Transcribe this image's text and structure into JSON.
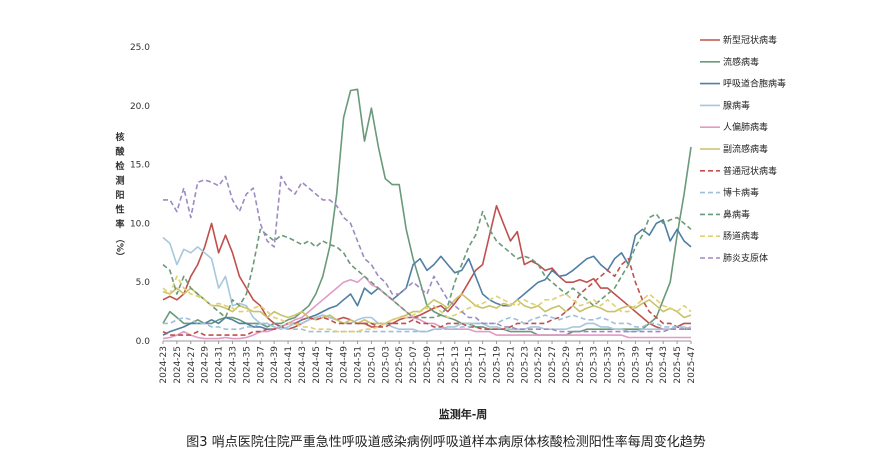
{
  "chart_data": {
    "type": "line",
    "title": "",
    "caption": "图3   哨点医院住院严重急性呼吸道感染病例呼吸道样本病原体核酸检测阳性率每周变化趋势",
    "xlabel": "监测年-周",
    "ylabel_chars": [
      "核",
      "酸",
      "检",
      "测",
      "阳",
      "性",
      "率",
      "（%）"
    ],
    "ylim": [
      0,
      25
    ],
    "yticks": [
      "0.0",
      "5.0",
      "10.0",
      "15.0",
      "20.0",
      "25.0"
    ],
    "ytick_values": [
      0,
      5,
      10,
      15,
      20,
      25
    ],
    "grid": false,
    "legend_position": "right",
    "x_tick_labels": [
      "2024-23",
      "2024-25",
      "2024-27",
      "2024-29",
      "2024-31",
      "2024-33",
      "2024-35",
      "2024-37",
      "2024-39",
      "2024-41",
      "2024-43",
      "2024-45",
      "2024-47",
      "2024-49",
      "2024-51",
      "2025-01",
      "2025-03",
      "2025-05",
      "2025-07",
      "2025-09",
      "2025-11",
      "2025-13",
      "2025-15",
      "2025-17",
      "2025-19",
      "2025-21",
      "2025-23",
      "2025-25",
      "2025-27",
      "2025-29",
      "2025-31",
      "2025-33",
      "2025-35",
      "2025-37",
      "2025-39",
      "2025-41",
      "2025-43",
      "2025-45",
      "2025-47"
    ],
    "n_points": 77,
    "series": [
      {
        "name": "新型冠状病毒",
        "color": "#c0504d",
        "dash": "solid",
        "values": [
          3.5,
          3.8,
          3.5,
          4.0,
          5.5,
          6.5,
          8.0,
          10.0,
          7.5,
          9.0,
          7.5,
          5.5,
          4.5,
          3.5,
          3.0,
          2.0,
          1.5,
          1.2,
          1.0,
          1.2,
          1.5,
          1.8,
          2.0,
          2.2,
          2.0,
          1.8,
          2.0,
          1.8,
          1.5,
          1.5,
          1.2,
          1.2,
          1.5,
          1.5,
          1.8,
          2.0,
          2.0,
          2.2,
          2.5,
          2.8,
          3.0,
          2.5,
          3.2,
          4.0,
          5.0,
          6.0,
          6.5,
          9.0,
          11.5,
          10.0,
          8.5,
          9.3,
          6.5,
          6.8,
          6.5,
          6.0,
          6.2,
          5.5,
          5.0,
          5.0,
          5.2,
          5.0,
          5.3,
          4.5,
          4.5,
          4.0,
          3.5,
          3.0,
          2.5,
          2.0,
          1.5,
          1.2,
          1.0,
          1.0,
          1.2,
          1.5,
          1.5
        ]
      },
      {
        "name": "流感病毒",
        "color": "#6a9a78",
        "dash": "solid",
        "values": [
          1.5,
          2.5,
          2.0,
          1.5,
          1.5,
          1.8,
          1.5,
          1.5,
          1.8,
          2.0,
          2.0,
          1.8,
          1.5,
          1.5,
          1.5,
          1.2,
          1.5,
          1.5,
          1.8,
          2.0,
          2.5,
          3.0,
          4.0,
          5.5,
          8.0,
          12.5,
          19.0,
          21.3,
          21.4,
          17.0,
          19.8,
          16.5,
          13.8,
          13.3,
          13.3,
          9.5,
          7.0,
          5.0,
          3.0,
          2.5,
          2.2,
          2.0,
          1.8,
          1.5,
          1.5,
          1.2,
          1.2,
          1.0,
          1.0,
          1.0,
          0.8,
          0.8,
          0.8,
          0.8,
          0.5,
          0.5,
          0.5,
          0.5,
          0.5,
          0.8,
          0.8,
          1.0,
          1.0,
          1.0,
          1.0,
          1.0,
          1.0,
          1.0,
          1.0,
          1.0,
          1.5,
          2.0,
          3.5,
          5.0,
          9.0,
          12.5,
          16.5
        ]
      },
      {
        "name": "呼吸道合胞病毒",
        "color": "#4f7fa3",
        "dash": "solid",
        "values": [
          0.5,
          0.8,
          1.0,
          1.2,
          1.5,
          1.5,
          1.5,
          1.8,
          1.5,
          2.0,
          1.8,
          1.5,
          1.5,
          1.2,
          1.2,
          1.0,
          1.0,
          1.2,
          1.5,
          1.5,
          1.8,
          2.0,
          2.2,
          2.5,
          2.8,
          3.0,
          3.5,
          4.0,
          3.0,
          4.5,
          4.0,
          4.5,
          4.0,
          3.5,
          4.0,
          4.5,
          6.5,
          7.0,
          6.0,
          6.5,
          7.2,
          6.5,
          5.8,
          6.0,
          7.0,
          5.5,
          4.0,
          3.5,
          3.2,
          3.0,
          3.0,
          3.5,
          4.0,
          4.5,
          5.0,
          5.2,
          6.0,
          5.5,
          5.6,
          6.0,
          6.5,
          7.0,
          7.2,
          6.5,
          6.0,
          7.0,
          7.5,
          6.5,
          9.0,
          9.5,
          9.0,
          10.0,
          10.3,
          8.5,
          9.5,
          8.5,
          8.0
        ]
      },
      {
        "name": "腺病毒",
        "color": "#a6c8de",
        "dash": "solid",
        "values": [
          8.8,
          8.3,
          6.5,
          7.8,
          7.5,
          8.0,
          7.5,
          7.0,
          4.5,
          5.5,
          3.0,
          3.2,
          3.0,
          2.0,
          1.5,
          1.5,
          1.2,
          1.0,
          1.2,
          1.5,
          1.5,
          1.8,
          2.0,
          2.2,
          2.0,
          1.8,
          1.5,
          1.5,
          1.8,
          2.0,
          2.0,
          1.5,
          1.5,
          1.2,
          1.0,
          1.0,
          1.0,
          0.8,
          0.8,
          1.0,
          1.0,
          1.2,
          1.2,
          1.5,
          1.5,
          1.5,
          1.5,
          1.2,
          1.2,
          1.0,
          1.0,
          1.0,
          1.0,
          1.2,
          1.2,
          1.0,
          1.0,
          1.0,
          1.0,
          1.2,
          1.2,
          1.5,
          1.5,
          1.2,
          1.2,
          1.0,
          1.0,
          0.8,
          0.8,
          1.0,
          1.0,
          1.0,
          1.0,
          1.0,
          1.2,
          1.2,
          1.0
        ]
      },
      {
        "name": "人偏肺病毒",
        "color": "#e39ac5",
        "dash": "solid",
        "values": [
          0.2,
          0.3,
          0.5,
          0.8,
          0.5,
          0.3,
          0.2,
          0.2,
          0.2,
          0.3,
          0.2,
          0.2,
          0.3,
          0.5,
          0.8,
          0.8,
          1.0,
          1.2,
          1.5,
          1.8,
          2.0,
          2.5,
          3.0,
          3.5,
          4.0,
          4.5,
          5.0,
          5.2,
          5.0,
          5.5,
          4.8,
          4.5,
          4.0,
          3.5,
          3.0,
          2.5,
          2.0,
          1.8,
          1.5,
          1.5,
          1.2,
          1.0,
          1.0,
          1.0,
          1.0,
          0.8,
          0.8,
          0.8,
          0.5,
          0.5,
          0.5,
          0.5,
          0.5,
          0.5,
          0.5,
          0.5,
          0.5,
          0.5,
          0.5,
          0.5,
          0.5,
          0.5,
          0.5,
          0.5,
          0.5,
          0.5,
          0.5,
          0.3,
          0.3,
          0.3,
          0.3,
          0.3,
          0.3,
          0.3,
          0.3,
          0.3,
          0.3
        ]
      },
      {
        "name": "副流感病毒",
        "color": "#c9c26a",
        "dash": "solid",
        "values": [
          4.2,
          4.0,
          4.5,
          4.0,
          4.5,
          4.0,
          3.5,
          3.0,
          3.0,
          2.8,
          2.5,
          3.0,
          2.8,
          2.5,
          2.5,
          2.0,
          2.5,
          2.2,
          2.0,
          2.2,
          2.5,
          2.0,
          1.8,
          2.0,
          2.2,
          1.8,
          1.5,
          1.8,
          1.5,
          1.8,
          1.5,
          1.5,
          1.5,
          1.8,
          2.0,
          2.2,
          2.5,
          2.5,
          3.0,
          3.5,
          3.2,
          2.8,
          3.5,
          4.0,
          3.5,
          3.0,
          2.8,
          3.0,
          2.8,
          3.2,
          3.0,
          3.5,
          3.0,
          2.8,
          3.0,
          2.5,
          2.8,
          3.0,
          2.5,
          3.0,
          2.5,
          2.8,
          3.0,
          2.8,
          2.5,
          2.5,
          2.8,
          3.0,
          2.8,
          3.2,
          3.5,
          3.0,
          2.5,
          2.8,
          2.5,
          2.0,
          2.2
        ]
      },
      {
        "name": "普通冠状病毒",
        "color": "#c0504d",
        "dash": "dashed",
        "values": [
          0.8,
          0.5,
          0.5,
          0.5,
          0.5,
          0.8,
          0.5,
          0.5,
          0.5,
          0.5,
          0.5,
          0.5,
          0.5,
          0.8,
          0.8,
          1.0,
          1.0,
          1.2,
          1.5,
          1.5,
          1.8,
          2.0,
          1.8,
          2.0,
          1.8,
          1.5,
          1.5,
          1.5,
          1.5,
          1.5,
          1.5,
          1.2,
          1.2,
          1.5,
          1.5,
          1.5,
          1.8,
          1.5,
          1.5,
          1.2,
          1.2,
          1.5,
          1.5,
          1.5,
          1.2,
          1.2,
          1.0,
          1.0,
          1.0,
          1.0,
          1.2,
          1.5,
          1.5,
          1.5,
          1.5,
          1.5,
          1.8,
          2.0,
          2.5,
          3.0,
          4.0,
          4.5,
          5.0,
          5.5,
          6.0,
          5.5,
          6.5,
          7.0,
          5.0,
          3.5,
          2.5,
          2.0,
          1.5,
          1.5,
          1.2,
          1.0,
          1.0
        ]
      },
      {
        "name": "博卡病毒",
        "color": "#9ec0dc",
        "dash": "dashed",
        "values": [
          1.5,
          1.5,
          1.8,
          2.0,
          1.8,
          1.5,
          1.5,
          1.2,
          1.2,
          1.0,
          1.0,
          1.0,
          1.2,
          1.2,
          1.5,
          1.5,
          1.2,
          1.2,
          1.0,
          1.0,
          1.0,
          0.8,
          0.8,
          0.8,
          0.8,
          0.8,
          0.8,
          0.8,
          0.8,
          0.8,
          0.8,
          0.8,
          0.8,
          0.8,
          0.8,
          0.8,
          0.8,
          0.8,
          0.8,
          1.0,
          1.0,
          1.0,
          1.0,
          1.2,
          1.2,
          1.5,
          1.5,
          1.5,
          1.5,
          1.8,
          2.0,
          1.8,
          1.5,
          1.8,
          2.0,
          2.2,
          2.0,
          1.8,
          2.0,
          2.2,
          2.0,
          1.8,
          1.8,
          2.0,
          1.8,
          1.5,
          1.5,
          1.5,
          1.2,
          1.2,
          1.5,
          1.5,
          1.2,
          1.2,
          1.2,
          1.0,
          1.2
        ]
      },
      {
        "name": "鼻病毒",
        "color": "#6a9a78",
        "dash": "dashed",
        "values": [
          6.5,
          6.0,
          4.0,
          5.5,
          4.5,
          4.0,
          3.5,
          3.0,
          2.5,
          2.0,
          3.5,
          3.0,
          4.0,
          6.5,
          9.5,
          9.0,
          8.5,
          9.0,
          8.8,
          8.5,
          8.2,
          8.5,
          8.0,
          8.5,
          8.2,
          8.0,
          7.5,
          6.5,
          6.0,
          5.5,
          5.0,
          4.5,
          4.0,
          3.5,
          3.0,
          2.5,
          2.0,
          2.0,
          2.0,
          2.0,
          2.2,
          3.0,
          5.0,
          6.5,
          8.0,
          9.0,
          11.0,
          9.5,
          8.5,
          8.0,
          7.5,
          7.0,
          7.2,
          7.0,
          6.5,
          5.5,
          5.0,
          4.5,
          4.0,
          4.5,
          4.0,
          3.5,
          3.0,
          3.5,
          4.0,
          4.5,
          5.5,
          6.5,
          8.0,
          9.0,
          10.5,
          10.8,
          10.0,
          10.3,
          10.5,
          10.0,
          9.5
        ]
      },
      {
        "name": "肠道病毒",
        "color": "#e0d070",
        "dash": "dashed",
        "values": [
          4.5,
          4.0,
          5.5,
          4.5,
          4.0,
          3.8,
          3.5,
          3.0,
          3.2,
          3.0,
          2.8,
          2.5,
          2.5,
          2.8,
          3.0,
          2.5,
          2.0,
          1.8,
          1.5,
          1.5,
          1.2,
          1.2,
          1.0,
          1.0,
          1.0,
          0.8,
          0.8,
          0.8,
          0.8,
          1.0,
          1.0,
          1.2,
          1.5,
          1.8,
          2.0,
          2.0,
          2.2,
          2.5,
          2.8,
          3.0,
          2.5,
          2.0,
          2.2,
          2.5,
          2.8,
          3.0,
          3.2,
          3.5,
          3.8,
          3.5,
          3.2,
          3.0,
          3.5,
          3.2,
          3.0,
          3.5,
          3.5,
          3.8,
          4.0,
          3.5,
          3.0,
          3.2,
          3.5,
          3.0,
          3.5,
          3.0,
          2.5,
          2.5,
          3.0,
          3.5,
          4.0,
          3.5,
          3.0,
          2.8,
          2.5,
          3.0,
          2.5
        ]
      },
      {
        "name": "肺炎支原体",
        "color": "#9d8ac0",
        "dash": "dashed",
        "values": [
          12.0,
          12.0,
          11.0,
          13.0,
          10.5,
          13.5,
          13.7,
          13.5,
          13.2,
          14.0,
          12.0,
          11.0,
          12.5,
          13.0,
          10.0,
          8.5,
          8.0,
          14.0,
          13.0,
          12.5,
          13.5,
          13.0,
          12.5,
          12.0,
          12.0,
          11.5,
          10.5,
          10.0,
          8.5,
          7.0,
          6.5,
          5.5,
          5.0,
          4.0,
          4.0,
          4.5,
          5.0,
          4.5,
          4.0,
          5.5,
          4.5,
          3.5,
          3.0,
          2.5,
          2.0,
          2.0,
          1.5,
          1.5,
          1.5,
          1.2,
          1.2,
          1.0,
          1.0,
          1.0,
          1.0,
          1.0,
          1.0,
          0.8,
          0.8,
          0.8,
          0.8,
          0.8,
          0.8,
          0.8,
          0.8,
          0.8,
          0.8,
          0.8,
          0.8,
          0.8,
          0.8,
          0.8,
          0.8,
          1.0,
          1.0,
          1.0,
          1.0
        ]
      }
    ]
  }
}
